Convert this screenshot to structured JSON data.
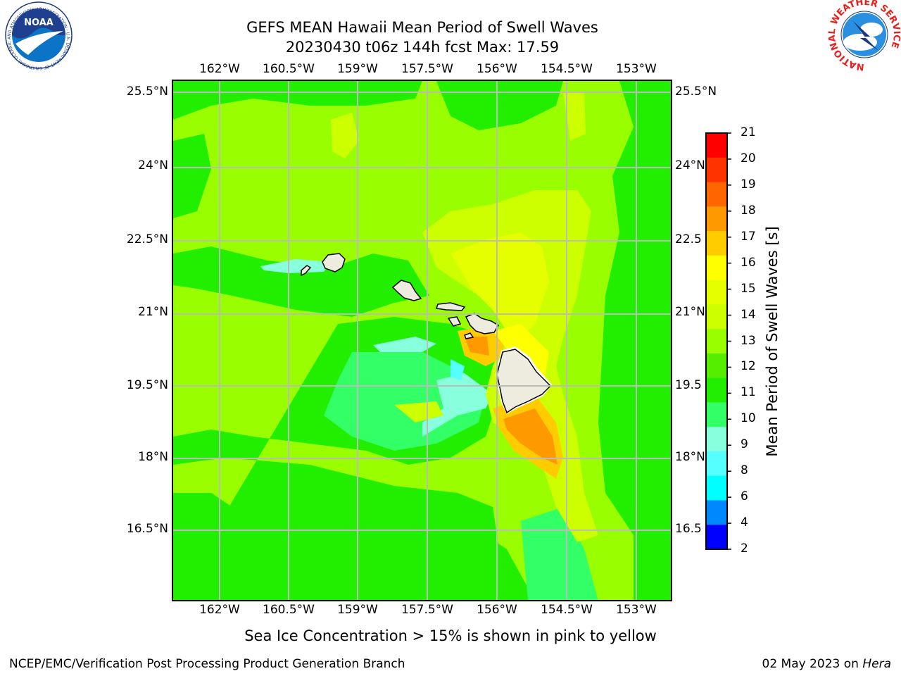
{
  "header": {
    "title_line1": "GEFS MEAN Hawaii Mean Period of Swell Waves",
    "title_line2": "20230430 t06z 144h fcst   Max: 17.59"
  },
  "map": {
    "lon_labels": [
      "162°W",
      "160.5°W",
      "159°W",
      "157.5°W",
      "156°W",
      "154.5°W",
      "153°W"
    ],
    "lat_labels": [
      "25.5°N",
      "24°N",
      "22.5°N",
      "21°N",
      "19.5°N",
      "18°N",
      "16.5°N"
    ],
    "lat_labels_right": [
      "25.5°N",
      "24°N",
      "22.5",
      "21°N",
      "19.5",
      "18°N",
      "16.5"
    ],
    "islands": [
      "Niihau",
      "Kauai",
      "Oahu",
      "Molokai",
      "Lanai",
      "Maui",
      "Kahoolawe",
      "Hawaii"
    ]
  },
  "colorbar": {
    "title": "Mean Period of Swell Waves [s]",
    "ticks": [
      "21",
      "20",
      "19",
      "18",
      "17",
      "16",
      "15",
      "14",
      "13",
      "12",
      "11",
      "10",
      "9",
      "8",
      "6",
      "4",
      "2"
    ],
    "colors": [
      "#ff0000",
      "#ff3300",
      "#ff6600",
      "#ff9900",
      "#ffcc00",
      "#ffff00",
      "#e6ff00",
      "#ccff00",
      "#99ff00",
      "#55ee00",
      "#22ee00",
      "#33ff66",
      "#88ffdd",
      "#55ffff",
      "#00ffff",
      "#0088ff",
      "#0000ff"
    ]
  },
  "footer": {
    "sea_ice_note": "Sea Ice Concentration > 15% is shown in pink to yellow",
    "branch": "NCEP/EMC/Verification Post Processing Product Generation Branch",
    "date_text": "02 May 2023 on ",
    "host": "Hera"
  },
  "logos": {
    "noaa_text": "NOAA",
    "noaa_ring": "NATIONAL OCEANIC AND ATMOSPHERIC ADMINISTRATION · U.S. DEPARTMENT OF COMMERCE",
    "nws_ring": "NATIONAL WEATHER SERVICE"
  }
}
